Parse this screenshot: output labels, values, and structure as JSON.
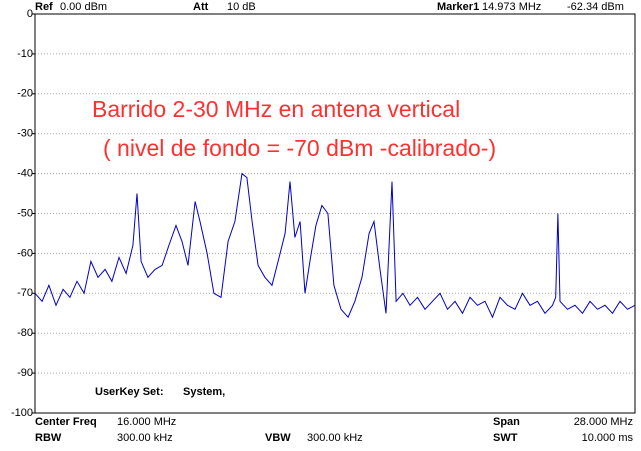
{
  "header": {
    "ref_label": "Ref",
    "ref_value": "0.00 dBm",
    "att_label": "Att",
    "att_value": "10 dB",
    "marker_label": "Marker1",
    "marker_freq": "14.973 MHz",
    "marker_level": "-62.34 dBm"
  },
  "footer": {
    "center_label": "Center Freq",
    "center_value": "16.000 MHz",
    "span_label": "Span",
    "span_value": "28.000 MHz",
    "rbw_label": "RBW",
    "rbw_value": "300.00 kHz",
    "vbw_label": "VBW",
    "vbw_value": "300.00 kHz",
    "swt_label": "SWT",
    "swt_value": "10.000 ms"
  },
  "userkey": {
    "label": "UserKey Set:",
    "value": "System,"
  },
  "chart_data": {
    "type": "line",
    "annotations": [
      "Barrido 2-30 MHz en antena vertical",
      "( nivel de fondo = -70 dBm -calibrado-)"
    ],
    "x": [
      2.0,
      2.33,
      2.65,
      2.98,
      3.31,
      3.63,
      3.96,
      4.29,
      4.61,
      4.94,
      5.27,
      5.59,
      5.92,
      6.25,
      6.57,
      6.76,
      6.95,
      7.27,
      7.6,
      7.93,
      8.25,
      8.58,
      8.86,
      9.14,
      9.47,
      9.7,
      10.03,
      10.35,
      10.68,
      11.01,
      11.33,
      11.66,
      11.89,
      12.13,
      12.41,
      12.73,
      13.06,
      13.39,
      13.67,
      13.9,
      14.13,
      14.37,
      14.6,
      14.83,
      15.11,
      15.39,
      15.67,
      15.95,
      16.28,
      16.61,
      16.93,
      17.26,
      17.59,
      17.82,
      18.1,
      18.38,
      18.66,
      18.85,
      19.17,
      19.5,
      19.85,
      20.2,
      20.55,
      20.9,
      21.25,
      21.6,
      21.95,
      22.3,
      22.65,
      23.0,
      23.35,
      23.7,
      24.05,
      24.4,
      24.75,
      25.1,
      25.45,
      25.8,
      26.15,
      26.3,
      26.4,
      26.5,
      26.85,
      27.2,
      27.55,
      27.9,
      28.25,
      28.6,
      28.95,
      29.3,
      29.65,
      30.0
    ],
    "series": [
      {
        "color": "#0000cc",
        "values": [
          -70,
          -72,
          -68,
          -73,
          -69,
          -71,
          -67,
          -70,
          -62,
          -66,
          -64,
          -67,
          -61,
          -65,
          -58,
          -45,
          -62,
          -66,
          -64,
          -63,
          -58,
          -53,
          -57,
          -63,
          -47,
          -52,
          -60,
          -70,
          -71,
          -57,
          -52,
          -40,
          -41,
          -52,
          -63,
          -66,
          -68,
          -61,
          -55,
          -42,
          -56,
          -52,
          -70,
          -62,
          -53,
          -48,
          -50,
          -68,
          -74,
          -76,
          -72,
          -66,
          -55,
          -52,
          -64,
          -75,
          -42,
          -72,
          -70,
          -73,
          -71,
          -74,
          -72,
          -70,
          -74,
          -72,
          -75,
          -71,
          -73,
          -72,
          -76,
          -71,
          -73,
          -74,
          -70,
          -73,
          -72,
          -75,
          -73,
          -71,
          -50,
          -72,
          -74,
          -73,
          -75,
          -72,
          -74,
          -73,
          -75,
          -72,
          -74,
          -73
        ]
      }
    ],
    "xlim": [
      2,
      30
    ],
    "ylim": [
      -100,
      0
    ],
    "yticks": [
      0,
      -10,
      -20,
      -30,
      -40,
      -50,
      -60,
      -70,
      -80,
      -90,
      -100
    ],
    "grid": true
  }
}
